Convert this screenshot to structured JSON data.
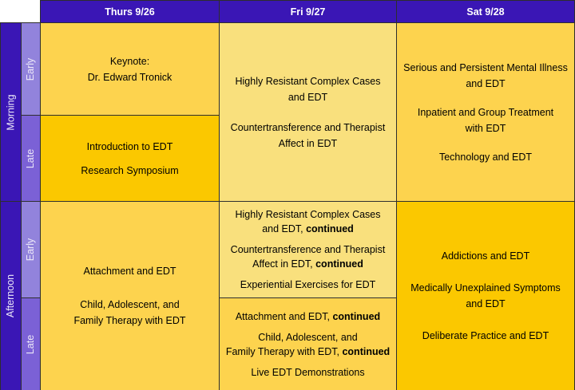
{
  "header": {
    "columns": [
      "Thurs 9/26",
      "Fri 9/27",
      "Sat 9/28"
    ]
  },
  "periods": [
    {
      "label": "Morning",
      "slots": [
        "Early",
        "Late"
      ]
    },
    {
      "label": "Afternoon",
      "slots": [
        "Early",
        "Late"
      ]
    }
  ],
  "colors": {
    "header_bg": "#3A16B5",
    "period_bg": "#3A16B5",
    "early_slot_bg": "#9283DC",
    "late_slot_bg": "#7B61D6",
    "gold_cell_bg": "#FDD34E",
    "deep_gold_cell_bg": "#FBC800",
    "pale_yellow_cell_bg": "#F9E07D",
    "border": "#2E2E2E",
    "header_text": "#FFFFFF",
    "cell_text": "#000000"
  },
  "cells": {
    "thu_morning_early": {
      "paragraphs": [
        [
          "Keynote:",
          "Dr. Edward Tronick"
        ]
      ]
    },
    "thu_morning_late": {
      "paragraphs": [
        [
          "Introduction to EDT"
        ],
        [
          "Research Symposium"
        ]
      ]
    },
    "thu_afternoon": {
      "paragraphs": [
        [
          "Attachment and EDT"
        ],
        [
          "Child, Adolescent, and",
          "Family Therapy with EDT"
        ]
      ]
    },
    "fri_morning": {
      "paragraphs": [
        [
          "Highly Resistant Complex Cases",
          "and EDT"
        ],
        [
          "Countertransference and Therapist",
          "Affect in EDT"
        ]
      ]
    },
    "fri_afternoon_early": {
      "paragraphs": [
        [
          "Highly Resistant Complex Cases",
          [
            {
              "t": "and EDT, "
            },
            {
              "t": "continued",
              "b": true
            }
          ]
        ],
        [
          "Countertransference and Therapist",
          [
            {
              "t": "Affect in EDT, "
            },
            {
              "t": "continued",
              "b": true
            }
          ]
        ],
        [
          "Experiential Exercises for EDT"
        ]
      ]
    },
    "fri_afternoon_late": {
      "paragraphs": [
        [
          [
            {
              "t": "Attachment and EDT, "
            },
            {
              "t": "continued",
              "b": true
            }
          ]
        ],
        [
          "Child, Adolescent, and",
          [
            {
              "t": "Family Therapy with EDT, "
            },
            {
              "t": "continued",
              "b": true
            }
          ]
        ],
        [
          "Live EDT Demonstrations"
        ]
      ]
    },
    "sat_morning": {
      "paragraphs": [
        [
          "Serious and Persistent Mental Illness",
          "and EDT"
        ],
        [
          "Inpatient and Group Treatment",
          "with EDT"
        ],
        [
          "Technology and EDT"
        ]
      ]
    },
    "sat_afternoon": {
      "paragraphs": [
        [
          "Addictions and EDT"
        ],
        [
          "Medically Unexplained Symptoms",
          "and EDT"
        ],
        [
          "Deliberate Practice and EDT"
        ]
      ]
    }
  }
}
